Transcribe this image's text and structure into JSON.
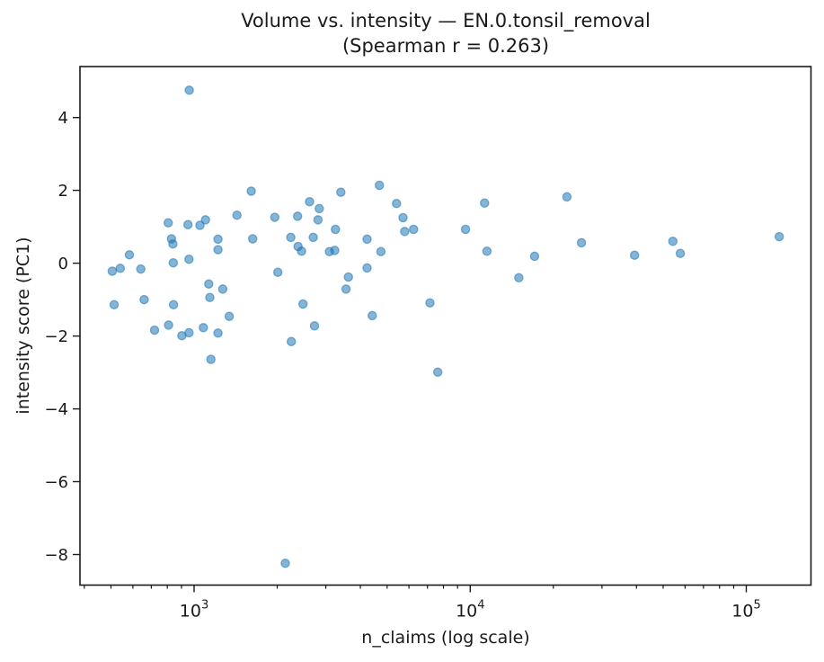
{
  "figure": {
    "title": "Volume vs. intensity — EN.0.tonsil_removal",
    "subtitle": "(Spearman r = 0.263)"
  },
  "chart_data": {
    "type": "scatter",
    "title": "Volume vs. intensity — EN.0.tonsil_removal",
    "subtitle": "(Spearman r = 0.263)",
    "xlabel": "n_claims (log scale)",
    "ylabel": "intensity score (PC1)",
    "x_scale": "log",
    "y_scale": "linear",
    "xlim": [
      386,
      171500
    ],
    "ylim": [
      -8.84,
      5.4
    ],
    "grid": false,
    "legend": "none",
    "spearman_r": 0.263,
    "marker": {
      "color": "#1f77b4",
      "alpha": 0.55,
      "radius": 4.6,
      "edge_width": 1.3
    },
    "axis_color": "#1a1a1a",
    "x_major_ticks": [
      {
        "value": 1000,
        "base": "10",
        "exp": "3"
      },
      {
        "value": 10000,
        "base": "10",
        "exp": "4"
      },
      {
        "value": 100000,
        "base": "10",
        "exp": "5"
      }
    ],
    "x_minor_ticks": [
      400,
      500,
      600,
      700,
      800,
      900,
      2000,
      3000,
      4000,
      5000,
      6000,
      7000,
      8000,
      9000,
      20000,
      30000,
      40000,
      50000,
      60000,
      70000,
      80000,
      90000
    ],
    "y_ticks": [
      {
        "value": 4,
        "label": "4"
      },
      {
        "value": 2,
        "label": "2"
      },
      {
        "value": 0,
        "label": "0"
      },
      {
        "value": -2,
        "label": "−2"
      },
      {
        "value": -4,
        "label": "−4"
      },
      {
        "value": -6,
        "label": "−6"
      },
      {
        "value": -8,
        "label": "−8"
      }
    ],
    "points": [
      [
        960,
        4.75
      ],
      [
        1610,
        1.98
      ],
      [
        3400,
        1.95
      ],
      [
        4690,
        2.14
      ],
      [
        2620,
        1.69
      ],
      [
        2840,
        1.5
      ],
      [
        2810,
        1.19
      ],
      [
        1430,
        1.32
      ],
      [
        1960,
        1.26
      ],
      [
        2370,
        1.29
      ],
      [
        806,
        1.11
      ],
      [
        950,
        1.06
      ],
      [
        1100,
        1.19
      ],
      [
        1050,
        1.04
      ],
      [
        3250,
        0.93
      ],
      [
        828,
        0.67
      ],
      [
        838,
        0.53
      ],
      [
        1220,
        0.66
      ],
      [
        1220,
        0.37
      ],
      [
        1630,
        0.67
      ],
      [
        2240,
        0.71
      ],
      [
        2700,
        0.71
      ],
      [
        2380,
        0.46
      ],
      [
        2450,
        0.33
      ],
      [
        3090,
        0.32
      ],
      [
        3230,
        0.35
      ],
      [
        4230,
        0.66
      ],
      [
        4750,
        0.32
      ],
      [
        5790,
        0.87
      ],
      [
        6240,
        0.93
      ],
      [
        5410,
        1.64
      ],
      [
        5710,
        1.25
      ],
      [
        9620,
        0.93
      ],
      [
        11280,
        1.65
      ],
      [
        11500,
        0.33
      ],
      [
        17100,
        0.19
      ],
      [
        15000,
        -0.4
      ],
      [
        22400,
        1.82
      ],
      [
        25300,
        0.56
      ],
      [
        39400,
        0.22
      ],
      [
        54200,
        0.6
      ],
      [
        57700,
        0.27
      ],
      [
        131600,
        0.73
      ],
      [
        583,
        0.23
      ],
      [
        505,
        -0.22
      ],
      [
        540,
        -0.14
      ],
      [
        641,
        -0.16
      ],
      [
        840,
        0.01
      ],
      [
        958,
        0.11
      ],
      [
        4230,
        -0.13
      ],
      [
        3620,
        -0.38
      ],
      [
        3550,
        -0.71
      ],
      [
        1130,
        -0.57
      ],
      [
        1270,
        -0.71
      ],
      [
        1140,
        -0.94
      ],
      [
        2010,
        -0.25
      ],
      [
        513,
        -1.14
      ],
      [
        659,
        -1.0
      ],
      [
        842,
        -1.14
      ],
      [
        2480,
        -1.12
      ],
      [
        7150,
        -1.09
      ],
      [
        1340,
        -1.46
      ],
      [
        4420,
        -1.44
      ],
      [
        808,
        -1.7
      ],
      [
        719,
        -1.84
      ],
      [
        903,
        -1.99
      ],
      [
        958,
        -1.91
      ],
      [
        1080,
        -1.77
      ],
      [
        1220,
        -1.92
      ],
      [
        2730,
        -1.72
      ],
      [
        2250,
        -2.15
      ],
      [
        1150,
        -2.64
      ],
      [
        7630,
        -2.99
      ],
      [
        2140,
        -8.24
      ]
    ]
  }
}
